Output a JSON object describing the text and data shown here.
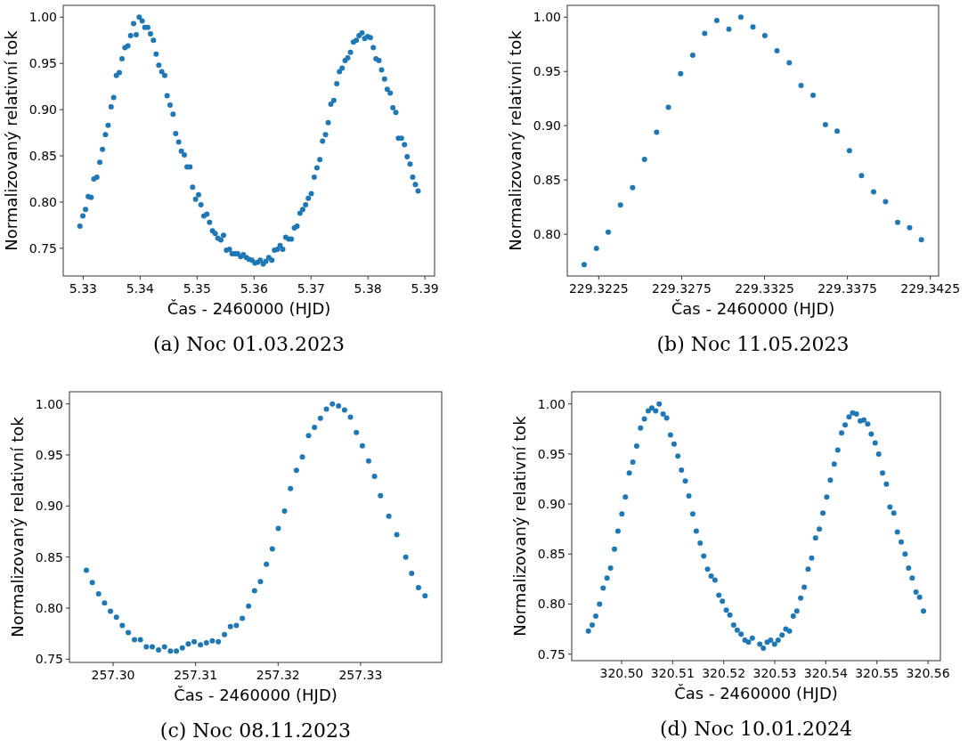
{
  "chart_data": [
    {
      "type": "scatter",
      "xlabel": "Čas - 2460000 (HJD)",
      "ylabel": "Normalizovaný relativní tok",
      "annotations": [
        "(a) Noc 01.03.2023"
      ],
      "marker": "circle",
      "xlim": [
        5.3265,
        5.3917
      ],
      "ylim": [
        0.72,
        1.0128
      ],
      "xticks": [
        {
          "value": 5.33,
          "label": "5.33"
        },
        5.34,
        5.35,
        5.36,
        5.37,
        5.38,
        5.39
      ],
      "yticks": [
        {
          "value": 0.75,
          "label": "0.75"
        },
        {
          "value": 0.8,
          "label": "0.80"
        },
        {
          "value": 0.85,
          "label": "0.85"
        },
        {
          "value": 0.9,
          "label": "0.90"
        },
        {
          "value": 0.95,
          "label": "0.95"
        },
        {
          "value": 1,
          "label": "1.00"
        }
      ],
      "series": [
        {
          "color": "#1f77b4",
          "x": [
            5.32943,
            5.32995,
            5.33042,
            5.33089,
            5.33141,
            5.33188,
            5.3324,
            5.33292,
            5.33339,
            5.33391,
            5.33438,
            5.3349,
            5.33536,
            5.33583,
            5.33635,
            5.33682,
            5.33734,
            5.33786,
            5.33833,
            5.33885,
            5.33932,
            5.33984,
            5.34036,
            5.34083,
            5.34135,
            5.34182,
            5.34234,
            5.34281,
            5.34328,
            5.3438,
            5.34432,
            5.34474,
            5.34526,
            5.34578,
            5.34625,
            5.34677,
            5.34724,
            5.34776,
            5.34823,
            5.34875,
            5.34922,
            5.34974,
            5.35026,
            5.35068,
            5.3512,
            5.35172,
            5.35219,
            5.35271,
            5.35318,
            5.35365,
            5.35417,
            5.35464,
            5.35516,
            5.35568,
            5.35615,
            5.35667,
            5.35714,
            5.35766,
            5.35813,
            5.35865,
            5.35911,
            5.35964,
            5.36016,
            5.36063,
            5.36109,
            5.36161,
            5.36208,
            5.3626,
            5.36313,
            5.36359,
            5.36411,
            5.36458,
            5.36505,
            5.36557,
            5.36609,
            5.36656,
            5.36708,
            5.36755,
            5.36807,
            5.36854,
            5.36906,
            5.36953,
            5.37005,
            5.37057,
            5.37104,
            5.37156,
            5.37203,
            5.37255,
            5.37302,
            5.37349,
            5.37401,
            5.37453,
            5.375,
            5.37547,
            5.37599,
            5.37646,
            5.37693,
            5.37745,
            5.37797,
            5.37844,
            5.37896,
            5.37943,
            5.37995,
            5.38042,
            5.38094,
            5.38141,
            5.38193,
            5.3824,
            5.38292,
            5.38339,
            5.38391,
            5.38438,
            5.3849,
            5.38536,
            5.38589,
            5.38641,
            5.38688,
            5.3874,
            5.38786,
            5.38833,
            5.3888
          ],
          "values": [
            0.774,
            0.785,
            0.792,
            0.806,
            0.805,
            0.825,
            0.827,
            0.843,
            0.857,
            0.873,
            0.883,
            0.903,
            0.913,
            0.937,
            0.94,
            0.955,
            0.967,
            0.969,
            0.98,
            0.993,
            0.981,
            1.0,
            0.996,
            0.989,
            0.989,
            0.982,
            0.975,
            0.96,
            0.948,
            0.941,
            0.937,
            0.915,
            0.905,
            0.895,
            0.874,
            0.865,
            0.855,
            0.851,
            0.838,
            0.838,
            0.816,
            0.803,
            0.808,
            0.797,
            0.785,
            0.787,
            0.778,
            0.769,
            0.766,
            0.761,
            0.759,
            0.764,
            0.748,
            0.749,
            0.744,
            0.744,
            0.744,
            0.741,
            0.743,
            0.74,
            0.738,
            0.737,
            0.734,
            0.735,
            0.737,
            0.733,
            0.736,
            0.74,
            0.737,
            0.748,
            0.749,
            0.753,
            0.749,
            0.762,
            0.76,
            0.76,
            0.772,
            0.774,
            0.788,
            0.792,
            0.797,
            0.804,
            0.809,
            0.827,
            0.837,
            0.846,
            0.866,
            0.873,
            0.886,
            0.906,
            0.91,
            0.928,
            0.941,
            0.945,
            0.953,
            0.956,
            0.962,
            0.973,
            0.975,
            0.98,
            0.983,
            0.977,
            0.979,
            0.978,
            0.967,
            0.955,
            0.953,
            0.943,
            0.933,
            0.922,
            0.918,
            0.902,
            0.897,
            0.869,
            0.869,
            0.862,
            0.849,
            0.841,
            0.827,
            0.819,
            0.812
          ]
        }
      ]
    },
    {
      "type": "scatter",
      "xlabel": "Čas - 2460000 (HJD)",
      "ylabel": "Normalizovaný relativní tok",
      "annotations": [
        "(b) Noc 11.05.2023"
      ],
      "marker": "circle",
      "xlim": [
        229.3206,
        229.343
      ],
      "ylim": [
        0.7615,
        1.0109
      ],
      "xticks": [
        229.3225,
        229.3275,
        229.3325,
        229.3375,
        229.3425
      ],
      "yticks": [
        {
          "value": 0.8,
          "label": "0.80"
        },
        {
          "value": 0.85,
          "label": "0.85"
        },
        {
          "value": 0.9,
          "label": "0.90"
        },
        {
          "value": 0.95,
          "label": "0.95"
        },
        {
          "value": 1,
          "label": "1.00"
        }
      ],
      "series": [
        {
          "color": "#1f77b4",
          "x": [
            229.32162,
            229.32236,
            229.32307,
            229.32381,
            229.32454,
            229.32526,
            229.32599,
            229.3267,
            229.32744,
            229.32817,
            229.32889,
            229.32962,
            229.33035,
            229.33107,
            229.3318,
            229.33252,
            229.33325,
            229.33399,
            229.3347,
            229.33543,
            229.33617,
            229.33688,
            229.33762,
            229.33835,
            229.33908,
            229.3398,
            229.34053,
            229.34125,
            229.34196
          ],
          "values": [
            0.772,
            0.787,
            0.802,
            0.827,
            0.843,
            0.869,
            0.894,
            0.917,
            0.948,
            0.965,
            0.985,
            0.997,
            0.989,
            1.0,
            0.991,
            0.983,
            0.969,
            0.958,
            0.937,
            0.928,
            0.901,
            0.895,
            0.877,
            0.854,
            0.839,
            0.83,
            0.811,
            0.806,
            0.795
          ]
        }
      ]
    },
    {
      "type": "scatter",
      "xlabel": "Čas - 2460000 (HJD)",
      "ylabel": "Normalizovaný relativní tok",
      "annotations": [
        "(c) Noc 08.11.2023"
      ],
      "marker": "circle",
      "xlim": [
        257.29471,
        257.33983
      ],
      "ylim": [
        0.7468,
        1.0119
      ],
      "xticks": [
        {
          "value": 257.3,
          "label": "257.30"
        },
        257.31,
        257.32,
        257.33
      ],
      "yticks": [
        {
          "value": 0.75,
          "label": "0.75"
        },
        {
          "value": 0.8,
          "label": "0.80"
        },
        {
          "value": 0.85,
          "label": "0.85"
        },
        {
          "value": 0.9,
          "label": "0.90"
        },
        {
          "value": 0.95,
          "label": "0.95"
        },
        {
          "value": 1,
          "label": "1.00"
        }
      ],
      "series": [
        {
          "color": "#1f77b4",
          "x": [
            257.29676,
            257.29748,
            257.29824,
            257.29896,
            257.29968,
            257.3004,
            257.30112,
            257.30184,
            257.30259,
            257.30331,
            257.30403,
            257.30475,
            257.30551,
            257.30623,
            257.30695,
            257.30767,
            257.30839,
            257.30911,
            257.30983,
            257.31059,
            257.31131,
            257.31203,
            257.31275,
            257.3135,
            257.31422,
            257.31494,
            257.31566,
            257.31642,
            257.31714,
            257.31786,
            257.31858,
            257.3193,
            257.32002,
            257.32078,
            257.3215,
            257.32222,
            257.32294,
            257.32369,
            257.32441,
            257.32513,
            257.32586,
            257.32658,
            257.32733,
            257.32805,
            257.32877,
            257.32949,
            257.33021,
            257.33097,
            257.33169,
            257.33241,
            257.33342,
            257.33439,
            257.33547,
            257.33619,
            257.33702,
            257.33781
          ],
          "values": [
            0.837,
            0.825,
            0.814,
            0.805,
            0.797,
            0.791,
            0.783,
            0.776,
            0.769,
            0.769,
            0.762,
            0.762,
            0.759,
            0.762,
            0.758,
            0.758,
            0.761,
            0.765,
            0.767,
            0.764,
            0.766,
            0.768,
            0.767,
            0.774,
            0.782,
            0.783,
            0.79,
            0.802,
            0.817,
            0.826,
            0.843,
            0.858,
            0.878,
            0.895,
            0.917,
            0.935,
            0.948,
            0.969,
            0.977,
            0.986,
            0.995,
            1.0,
            0.998,
            0.994,
            0.987,
            0.972,
            0.959,
            0.944,
            0.929,
            0.91,
            0.89,
            0.872,
            0.85,
            0.834,
            0.82,
            0.812
          ]
        }
      ]
    },
    {
      "type": "scatter",
      "xlabel": "Čas - 2460000 (HJD)",
      "ylabel": "Normalizovaný relativní tok",
      "annotations": [
        "(d) Noc 10.01.2024"
      ],
      "marker": "circle",
      "xlim": [
        320.49024,
        320.56243
      ],
      "ylim": [
        0.7435,
        1.0122
      ],
      "xticks": [
        {
          "value": 320.5,
          "label": "320.50"
        },
        320.51,
        320.52,
        320.53,
        320.54,
        320.55,
        320.56
      ],
      "yticks": [
        {
          "value": 0.75,
          "label": "0.75"
        },
        {
          "value": 0.8,
          "label": "0.80"
        },
        {
          "value": 0.85,
          "label": "0.85"
        },
        {
          "value": 0.9,
          "label": "0.90"
        },
        {
          "value": 0.95,
          "label": "0.95"
        },
        {
          "value": 1,
          "label": "1.00"
        }
      ],
      "series": [
        {
          "color": "#1f77b4",
          "x": [
            320.4935,
            320.49425,
            320.49495,
            320.4957,
            320.4964,
            320.49715,
            320.49785,
            320.49861,
            320.4993,
            320.50006,
            320.50075,
            320.50151,
            320.50221,
            320.50296,
            320.50372,
            320.50447,
            320.50523,
            320.50592,
            320.50668,
            320.50737,
            320.50813,
            320.50883,
            320.50958,
            320.51028,
            320.51103,
            320.51173,
            320.51248,
            320.51318,
            320.51394,
            320.51463,
            320.51539,
            320.51609,
            320.51684,
            320.51754,
            320.51829,
            320.51905,
            320.51974,
            320.5205,
            320.5212,
            320.52195,
            320.52265,
            320.5234,
            320.52416,
            320.52485,
            320.52561,
            320.52706,
            320.52776,
            320.52851,
            320.52921,
            320.52996,
            320.53066,
            320.53142,
            320.53217,
            320.53287,
            320.53362,
            320.53432,
            320.53507,
            320.53577,
            320.53653,
            320.53722,
            320.53798,
            320.53873,
            320.53943,
            320.54018,
            320.54088,
            320.54164,
            320.54233,
            320.54309,
            320.54378,
            320.54454,
            320.54524,
            320.54599,
            320.54675,
            320.54744,
            320.5482,
            320.54889,
            320.54965,
            320.55035,
            320.5511,
            320.55186,
            320.55255,
            320.55331,
            320.55401,
            320.55476,
            320.55551,
            320.55621,
            320.55691,
            320.55766,
            320.55836,
            320.55912
          ],
          "values": [
            0.773,
            0.779,
            0.788,
            0.8,
            0.816,
            0.826,
            0.836,
            0.855,
            0.873,
            0.89,
            0.907,
            0.931,
            0.942,
            0.958,
            0.976,
            0.985,
            0.993,
            0.996,
            0.993,
            1.0,
            0.99,
            0.986,
            0.969,
            0.96,
            0.948,
            0.934,
            0.923,
            0.908,
            0.89,
            0.873,
            0.861,
            0.848,
            0.835,
            0.828,
            0.824,
            0.809,
            0.803,
            0.794,
            0.789,
            0.779,
            0.774,
            0.77,
            0.764,
            0.762,
            0.766,
            0.76,
            0.756,
            0.762,
            0.764,
            0.76,
            0.764,
            0.769,
            0.775,
            0.773,
            0.788,
            0.793,
            0.806,
            0.817,
            0.835,
            0.846,
            0.866,
            0.875,
            0.891,
            0.907,
            0.924,
            0.94,
            0.954,
            0.971,
            0.979,
            0.987,
            0.991,
            0.99,
            0.983,
            0.984,
            0.98,
            0.97,
            0.961,
            0.95,
            0.931,
            0.92,
            0.897,
            0.891,
            0.872,
            0.862,
            0.85,
            0.836,
            0.826,
            0.812,
            0.807,
            0.793
          ]
        }
      ]
    }
  ]
}
